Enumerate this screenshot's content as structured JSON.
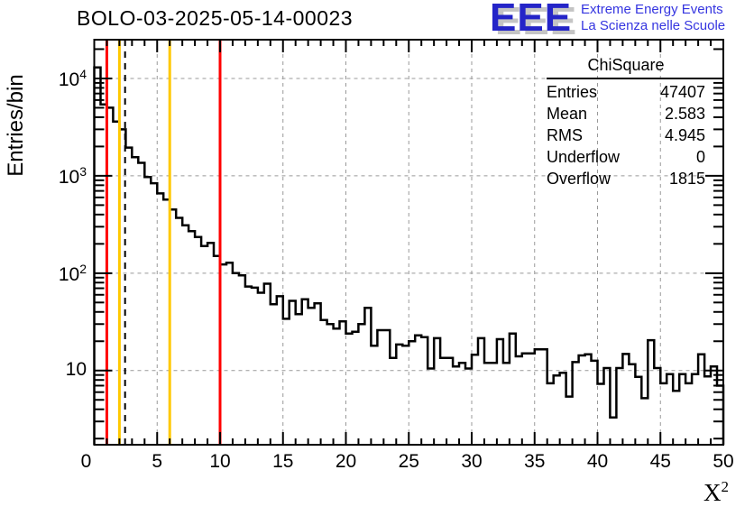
{
  "title": "BOLO-03-2025-05-14-00023",
  "logo": {
    "letters": "EEE",
    "line1": "Extreme Energy Events",
    "line2": "La Scienza nelle Scuole",
    "color_letters": "#2424c8",
    "color_text": "#3535e0"
  },
  "y_axis": {
    "title": "Entries/bin",
    "ticks": [
      {
        "base": "10",
        "exp": "4",
        "value": 10000
      },
      {
        "base": "10",
        "exp": "3",
        "value": 1000
      },
      {
        "base": "10",
        "exp": "2",
        "value": 100
      },
      {
        "base": "10",
        "exp": "",
        "value": 10
      }
    ]
  },
  "x_axis": {
    "title_base": "X",
    "title_exp": "2",
    "ticks": [
      "0",
      "5",
      "10",
      "15",
      "20",
      "25",
      "30",
      "35",
      "40",
      "45",
      "50"
    ]
  },
  "stats": {
    "title": "ChiSquare",
    "rows": [
      {
        "label": "Entries",
        "value": "47407"
      },
      {
        "label": "Mean",
        "value": "2.583"
      },
      {
        "label": "RMS",
        "value": "4.945"
      },
      {
        "label": "Underflow",
        "value": "0"
      },
      {
        "label": "Overflow",
        "value": "1815"
      }
    ]
  },
  "chart_data": {
    "type": "bar",
    "subtype": "step-histogram",
    "title": "BOLO-03-2025-05-14-00023",
    "xlabel": "X^2",
    "ylabel": "Entries/bin",
    "xlim": [
      0,
      50
    ],
    "ylim": [
      1.73,
      25000
    ],
    "yscale": "log",
    "grid": true,
    "grid_color": "#999999",
    "line_color": "#000000",
    "bin_start": 0,
    "bin_width": 0.5,
    "values": [
      13000,
      5400,
      5000,
      3600,
      3000,
      1950,
      1550,
      1360,
      970,
      840,
      660,
      570,
      450,
      370,
      310,
      270,
      235,
      190,
      205,
      150,
      123,
      128,
      100,
      95,
      73,
      71,
      63,
      78,
      48,
      58,
      34,
      52,
      38,
      54,
      44,
      49,
      33,
      30,
      27,
      32,
      24,
      25,
      30,
      44,
      18,
      26,
      26,
      13.5,
      18.5,
      18,
      20,
      23,
      22,
      10.5,
      21.5,
      13.5,
      13.5,
      11,
      12,
      10.5,
      14.5,
      21.5,
      12,
      12,
      21,
      12,
      24,
      14,
      15,
      15,
      16.5,
      16.5,
      7.4,
      8.9,
      9.5,
      5.4,
      12.2,
      14.3,
      14.7,
      12.6,
      7.3,
      10.6,
      3.3,
      10.6,
      14.8,
      11.6,
      8.6,
      5.2,
      20.5,
      10.6,
      7.4,
      9.2,
      6.2,
      9.2,
      7.4,
      9.2,
      14.7,
      8.7,
      11,
      7
    ],
    "marker_lines": [
      {
        "x": 1,
        "color": "#ff0000",
        "style": "solid"
      },
      {
        "x": 2,
        "color": "#ffc800",
        "style": "solid"
      },
      {
        "x": 2.45,
        "color": "#000000",
        "style": "dashed"
      },
      {
        "x": 6,
        "color": "#ffc800",
        "style": "solid"
      },
      {
        "x": 10,
        "color": "#ff0000",
        "style": "solid"
      }
    ],
    "legend": "none",
    "stats_box": {
      "title": "ChiSquare",
      "entries": 47407,
      "mean": 2.583,
      "rms": 4.945,
      "underflow": 0,
      "overflow": 1815
    }
  }
}
